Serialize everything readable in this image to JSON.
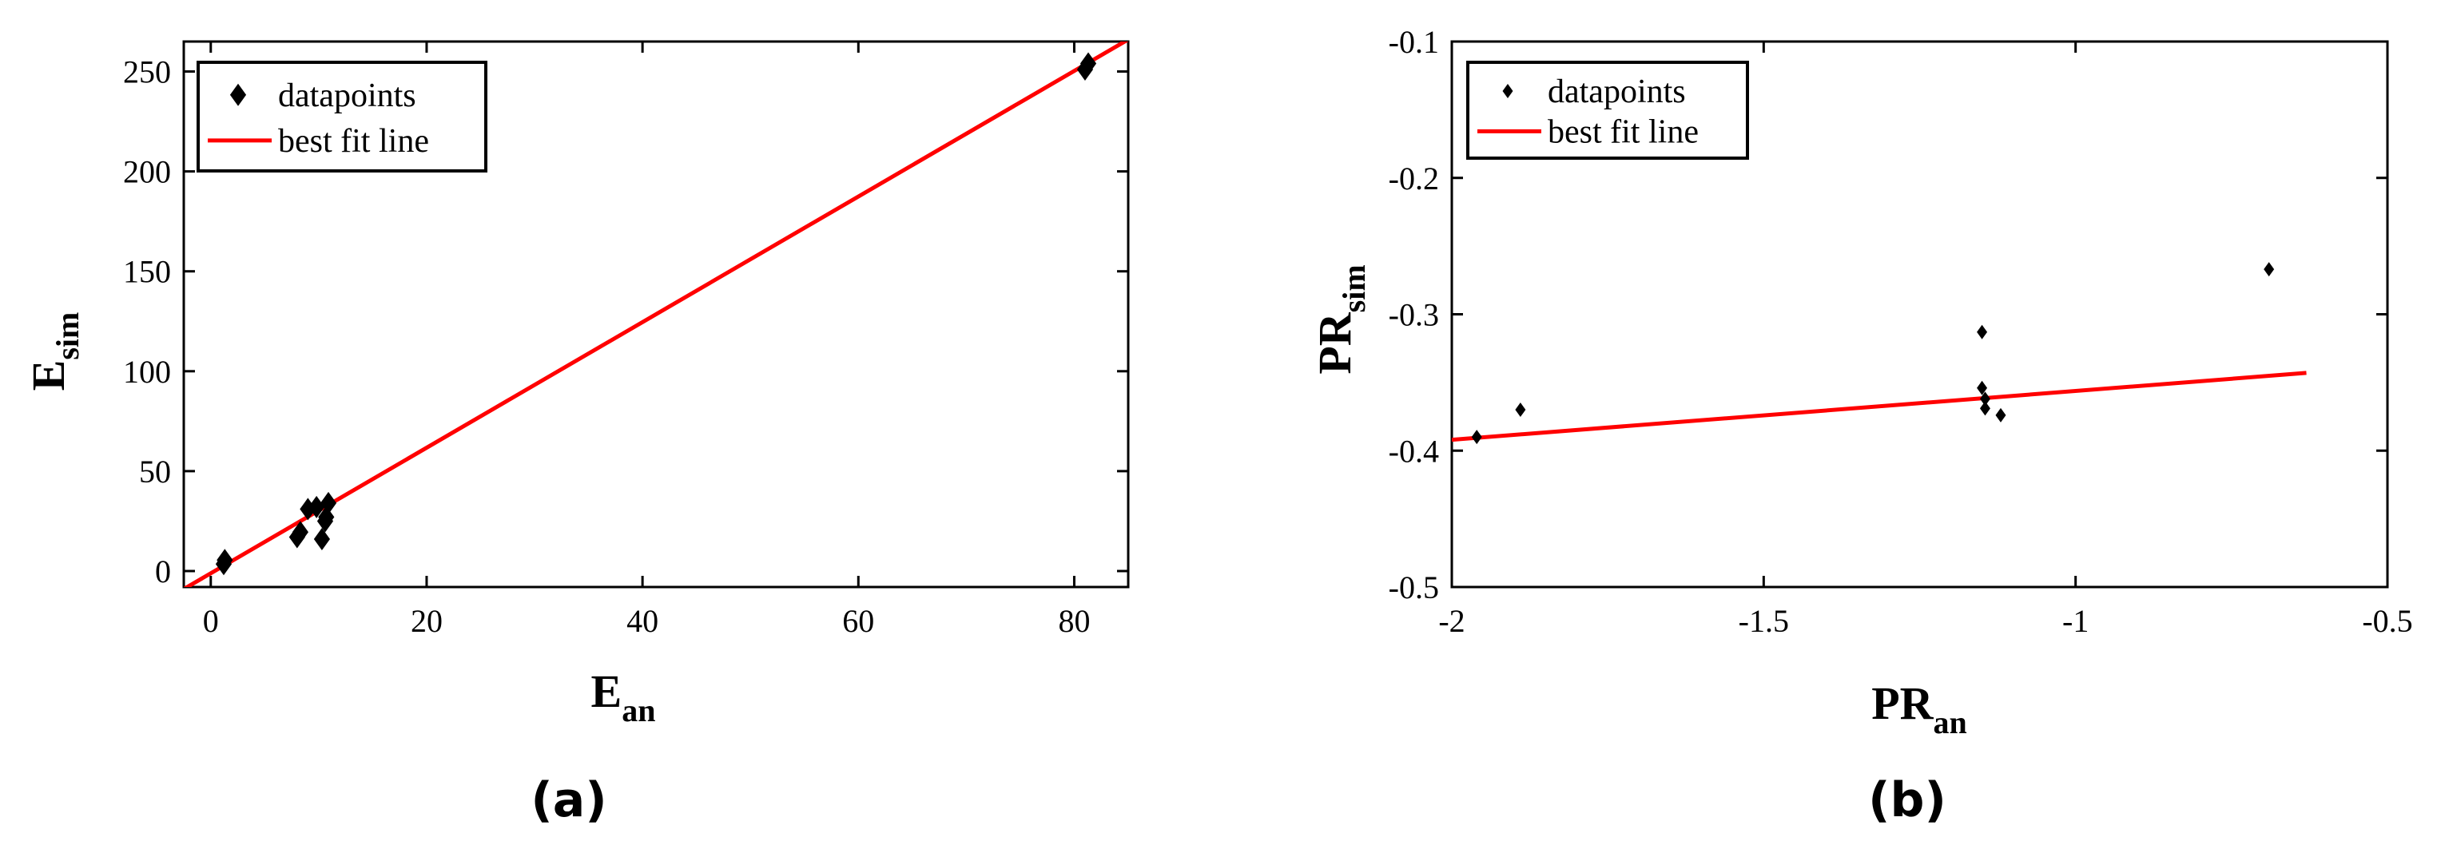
{
  "chart_data": [
    {
      "type": "scatter",
      "caption": "(a)",
      "xlabel": {
        "main": "E",
        "sub": "an"
      },
      "ylabel": {
        "main": "E",
        "sub": "sim"
      },
      "xlim": [
        -2.5,
        85
      ],
      "ylim": [
        -8,
        265
      ],
      "xticks": [
        0,
        20,
        40,
        60,
        80
      ],
      "yticks": [
        0,
        50,
        100,
        150,
        200,
        250
      ],
      "grid": false,
      "legend_position": "top-left",
      "series": [
        {
          "name": "datapoints",
          "kind": "scatter",
          "color": "#000000",
          "marker": "diamond",
          "points": [
            [
              1.2,
              3.5
            ],
            [
              1.3,
              5.5
            ],
            [
              8.0,
              17.0
            ],
            [
              8.3,
              19.5
            ],
            [
              9.0,
              31.0
            ],
            [
              9.8,
              32.0
            ],
            [
              10.3,
              16.0
            ],
            [
              10.6,
              25.0
            ],
            [
              10.7,
              27.0
            ],
            [
              10.9,
              34.0
            ],
            [
              81.0,
              251.0
            ],
            [
              81.3,
              254.0
            ]
          ]
        },
        {
          "name": "best fit line",
          "kind": "line",
          "color": "#ff0000",
          "points": [
            [
              -2.5,
              -9
            ],
            [
              85,
              266
            ]
          ]
        }
      ]
    },
    {
      "type": "scatter",
      "caption": "(b)",
      "xlabel": {
        "main": "PR",
        "sub": "an"
      },
      "ylabel": {
        "main": "PR",
        "sub": "sim"
      },
      "xlim": [
        -2,
        -0.5
      ],
      "ylim": [
        -0.5,
        -0.1
      ],
      "xticks": [
        -2,
        -1.5,
        -1,
        -0.5
      ],
      "yticks": [
        -0.5,
        -0.4,
        -0.3,
        -0.2,
        -0.1
      ],
      "grid": false,
      "legend_position": "top-left",
      "series": [
        {
          "name": "datapoints",
          "kind": "scatter",
          "color": "#000000",
          "marker": "diamond",
          "points": [
            [
              -1.96,
              -0.39
            ],
            [
              -1.89,
              -0.37
            ],
            [
              -1.15,
              -0.313
            ],
            [
              -1.15,
              -0.354
            ],
            [
              -1.145,
              -0.362
            ],
            [
              -1.145,
              -0.369
            ],
            [
              -1.12,
              -0.374
            ],
            [
              -0.69,
              -0.267
            ]
          ]
        },
        {
          "name": "best fit line",
          "kind": "line",
          "color": "#ff0000",
          "points": [
            [
              -2,
              -0.392
            ],
            [
              -0.63,
              -0.343
            ]
          ]
        }
      ]
    }
  ]
}
